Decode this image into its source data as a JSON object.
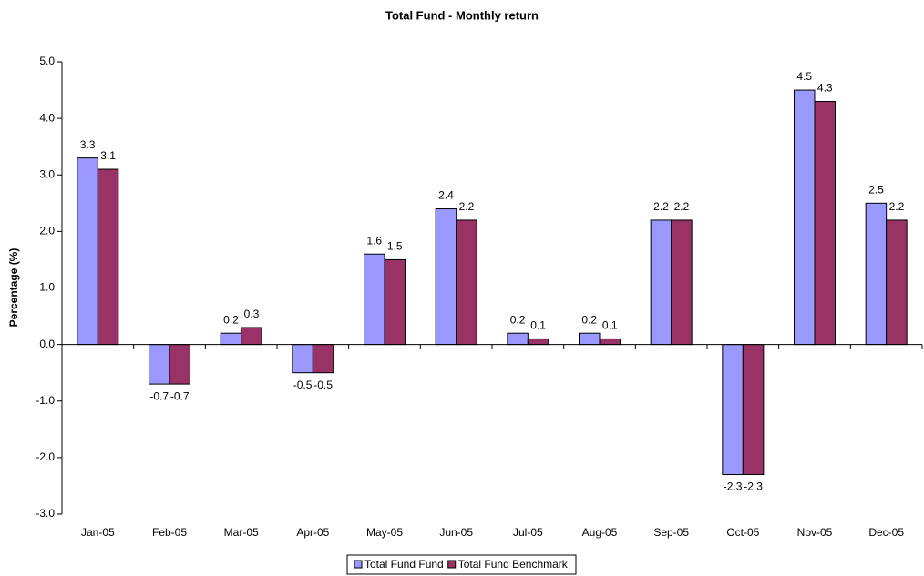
{
  "chart_data": {
    "type": "bar",
    "title": "Total Fund - Monthly return",
    "y_label": "Percentage (%)",
    "categories": [
      "Jan-05",
      "Feb-05",
      "Mar-05",
      "Apr-05",
      "May-05",
      "Jun-05",
      "Jul-05",
      "Aug-05",
      "Sep-05",
      "Oct-05",
      "Nov-05",
      "Dec-05"
    ],
    "series": [
      {
        "name": "Total Fund Fund",
        "color": "#9999ff",
        "values": [
          3.3,
          -0.7,
          0.2,
          -0.5,
          1.6,
          2.4,
          0.2,
          0.2,
          2.2,
          -2.3,
          4.5,
          2.5
        ]
      },
      {
        "name": "Total Fund Benchmark",
        "color": "#993366",
        "values": [
          3.1,
          -0.7,
          0.3,
          -0.5,
          1.5,
          2.2,
          0.1,
          0.1,
          2.2,
          -2.3,
          4.3,
          2.2
        ]
      }
    ],
    "ylim": [
      -3,
      5
    ],
    "yticks": [
      {
        "value": -3,
        "label": "-3.0"
      },
      {
        "value": -2,
        "label": "-2.0"
      },
      {
        "value": -1,
        "label": "-1.0"
      },
      {
        "value": 0,
        "label": "0.0"
      },
      {
        "value": 1,
        "label": "1.0"
      },
      {
        "value": 2,
        "label": "2.0"
      },
      {
        "value": 3,
        "label": "3.0"
      },
      {
        "value": 4,
        "label": "4.0"
      },
      {
        "value": 5,
        "label": "5.0"
      }
    ],
    "legend": "bottom"
  }
}
